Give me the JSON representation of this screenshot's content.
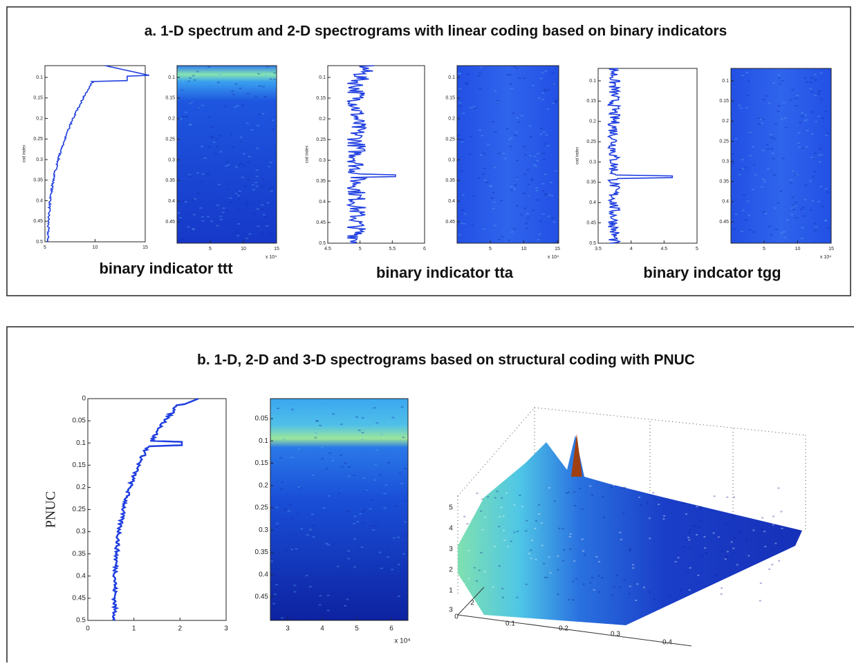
{
  "panel_a": {
    "title": "a. 1-D spectrum and 2-D spectrograms with linear coding based on binary indicators",
    "plots": [
      {
        "y_label": "cod index",
        "yticks": [
          "0.1",
          "0.15",
          "0.2",
          "0.25",
          "0.3",
          "0.35",
          "0.4",
          "0.45",
          "0.5"
        ],
        "xticks": [
          "5",
          "10",
          "15"
        ]
      },
      {
        "yticks": [
          "0.1",
          "0.15",
          "0.2",
          "0.25",
          "0.3",
          "0.35",
          "0.4",
          "0.45"
        ],
        "xticks": [
          "5",
          "10",
          "15"
        ],
        "multiplier": "x 10⁴"
      },
      {
        "y_label": "cod index",
        "yticks": [
          "0.1",
          "0.15",
          "0.2",
          "0.25",
          "0.3",
          "0.35",
          "0.4",
          "0.45",
          "0.5"
        ],
        "xticks": [
          "4.5",
          "5",
          "5.5",
          "6"
        ]
      },
      {
        "yticks": [
          "0.1",
          "0.15",
          "0.2",
          "0.25",
          "0.3",
          "0.35",
          "0.4",
          "0.45"
        ],
        "xticks": [
          "5",
          "10",
          "15"
        ],
        "multiplier": "x 10⁴"
      },
      {
        "y_label": "cod index",
        "yticks": [
          "0.1",
          "0.15",
          "0.2",
          "0.25",
          "0.3",
          "0.35",
          "0.4",
          "0.45",
          "0.5"
        ],
        "xticks": [
          "3.5",
          "4",
          "4.5",
          "5"
        ]
      },
      {
        "yticks": [
          "0.1",
          "0.15",
          "0.2",
          "0.25",
          "0.3",
          "0.35",
          "0.4",
          "0.45"
        ],
        "xticks": [
          "5",
          "10",
          "15"
        ],
        "multiplier": "x 10⁴"
      }
    ],
    "captions": [
      "binary indicator ttt",
      "binary indicator tta",
      "binary indcator tgg"
    ]
  },
  "panel_b": {
    "title": "b. 1-D, 2-D and 3-D spectrograms based on structural coding with PNUC",
    "plots": [
      {
        "y_label": "PNUC",
        "yticks": [
          "0",
          "0.05",
          "0.1",
          "0.15",
          "0.2",
          "0.25",
          "0.3",
          "0.35",
          "0.4",
          "0.45",
          "0.5"
        ],
        "xticks": [
          "0",
          "1",
          "2",
          "3"
        ]
      },
      {
        "yticks": [
          "0.05",
          "0.1",
          "0.15",
          "0.2",
          "0.25",
          "0.3",
          "0.35",
          "0.4",
          "0.45"
        ],
        "xticks": [
          "3",
          "4",
          "5",
          "6"
        ],
        "multiplier": "x 10⁴"
      }
    ],
    "surface": {
      "zticks": [
        "1",
        "2",
        "3",
        "4",
        "5"
      ],
      "yticks": [
        "3",
        "2"
      ],
      "xticks": [
        "0",
        "0.1",
        "0.2",
        "0.3",
        "0.4"
      ]
    }
  }
}
